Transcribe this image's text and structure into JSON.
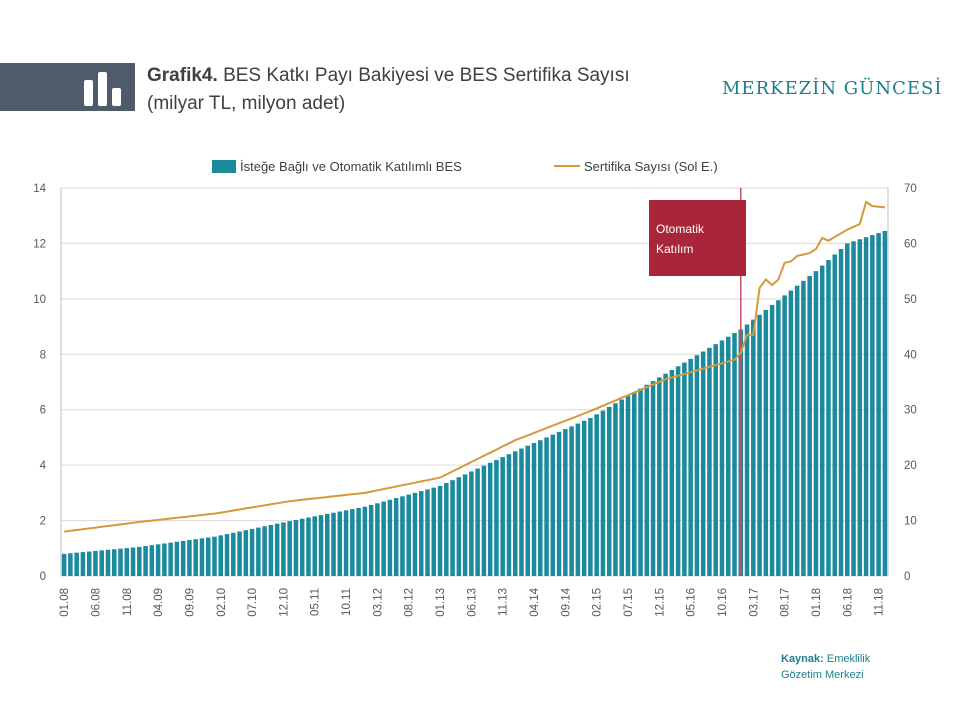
{
  "header": {
    "title_prefix": "Grafik",
    "title_number": "4.",
    "title_text": "BES Katkı Payı Bakiyesi ve BES Sertifika Sayısı",
    "subtitle": "(milyar TL, milyon adet)",
    "brand": "MERKEZİN GÜNCESİ",
    "icon": "bar-chart-icon"
  },
  "source": {
    "label": "Kaynak:",
    "text_line1": "Emeklilik",
    "text_line2": "Gözetim Merkezi"
  },
  "colors": {
    "bar": "#1b8a9c",
    "line": "#d49a3c",
    "annotation_box": "#a8253a",
    "annotation_line": "#c4506a",
    "header_band": "#4f5b6b",
    "brand": "#1a7f8e"
  },
  "chart_data": {
    "type": "bar",
    "legend": {
      "position": "top",
      "items": [
        "İsteğe Bağlı ve Otomatik Katılımlı BES",
        "Sertifika Sayısı (Sol E.)"
      ]
    },
    "annotation": {
      "text_line1": "Otomatik",
      "text_line2": "Katılım",
      "x": "01.17"
    },
    "left_axis": {
      "ylim": [
        0,
        14
      ],
      "ticks": [
        "0",
        "2",
        "4",
        "6",
        "8",
        "10",
        "12",
        "14"
      ]
    },
    "right_axis": {
      "ylim": [
        0,
        70
      ],
      "ticks": [
        "0",
        "10",
        "20",
        "30",
        "40",
        "50",
        "60",
        "70"
      ]
    },
    "grid": true,
    "tick_labels": [
      "01.08",
      "06.08",
      "11.08",
      "04.09",
      "09.09",
      "02.10",
      "07.10",
      "12.10",
      "05.11",
      "10.11",
      "03.12",
      "08.12",
      "01.13",
      "06.13",
      "11.13",
      "04.14",
      "09.14",
      "02.15",
      "07.15",
      "12.15",
      "05.16",
      "10.16",
      "03.17",
      "08.17",
      "01.18",
      "06.18",
      "11.18"
    ],
    "start": "01.08",
    "end": "12.18",
    "series": [
      {
        "name": "İsteğe Bağlı ve Otomatik Katılımlı BES",
        "kind": "bar",
        "axis": "right",
        "anchors": [
          [
            "01.08",
            0.8
          ],
          [
            "01.09",
            1.05
          ],
          [
            "01.10",
            1.42
          ],
          [
            "01.11",
            1.98
          ],
          [
            "01.12",
            2.5
          ],
          [
            "01.13",
            3.25
          ],
          [
            "01.14",
            4.5
          ],
          [
            "01.15",
            5.7
          ],
          [
            "01.16",
            7.3
          ],
          [
            "01.17",
            8.9
          ],
          [
            "01.18",
            11.0
          ],
          [
            "06.18",
            12.0
          ],
          [
            "12.18",
            12.45
          ]
        ]
      },
      {
        "name": "Sertifika Sayısı (Sol E.)",
        "kind": "line",
        "axis": "left",
        "anchors": [
          [
            "01.08",
            1.6
          ],
          [
            "01.09",
            1.95
          ],
          [
            "01.10",
            2.25
          ],
          [
            "01.11",
            2.7
          ],
          [
            "01.12",
            3.0
          ],
          [
            "01.13",
            3.55
          ],
          [
            "01.14",
            4.9
          ],
          [
            "01.15",
            5.95
          ],
          [
            "01.16",
            7.1
          ],
          [
            "12.16",
            7.8
          ],
          [
            "01.17",
            8.05
          ],
          [
            "02.17",
            8.7
          ],
          [
            "03.17",
            8.7
          ],
          [
            "04.17",
            10.4
          ],
          [
            "05.17",
            10.7
          ],
          [
            "06.17",
            10.5
          ],
          [
            "07.17",
            10.7
          ],
          [
            "08.17",
            11.3
          ],
          [
            "09.17",
            11.35
          ],
          [
            "10.17",
            11.55
          ],
          [
            "12.17",
            11.65
          ],
          [
            "01.18",
            11.8
          ],
          [
            "02.18",
            12.2
          ],
          [
            "03.18",
            12.1
          ],
          [
            "06.18",
            12.5
          ],
          [
            "08.18",
            12.7
          ],
          [
            "09.18",
            13.5
          ],
          [
            "10.18",
            13.35
          ],
          [
            "12.18",
            13.3
          ]
        ]
      }
    ]
  }
}
